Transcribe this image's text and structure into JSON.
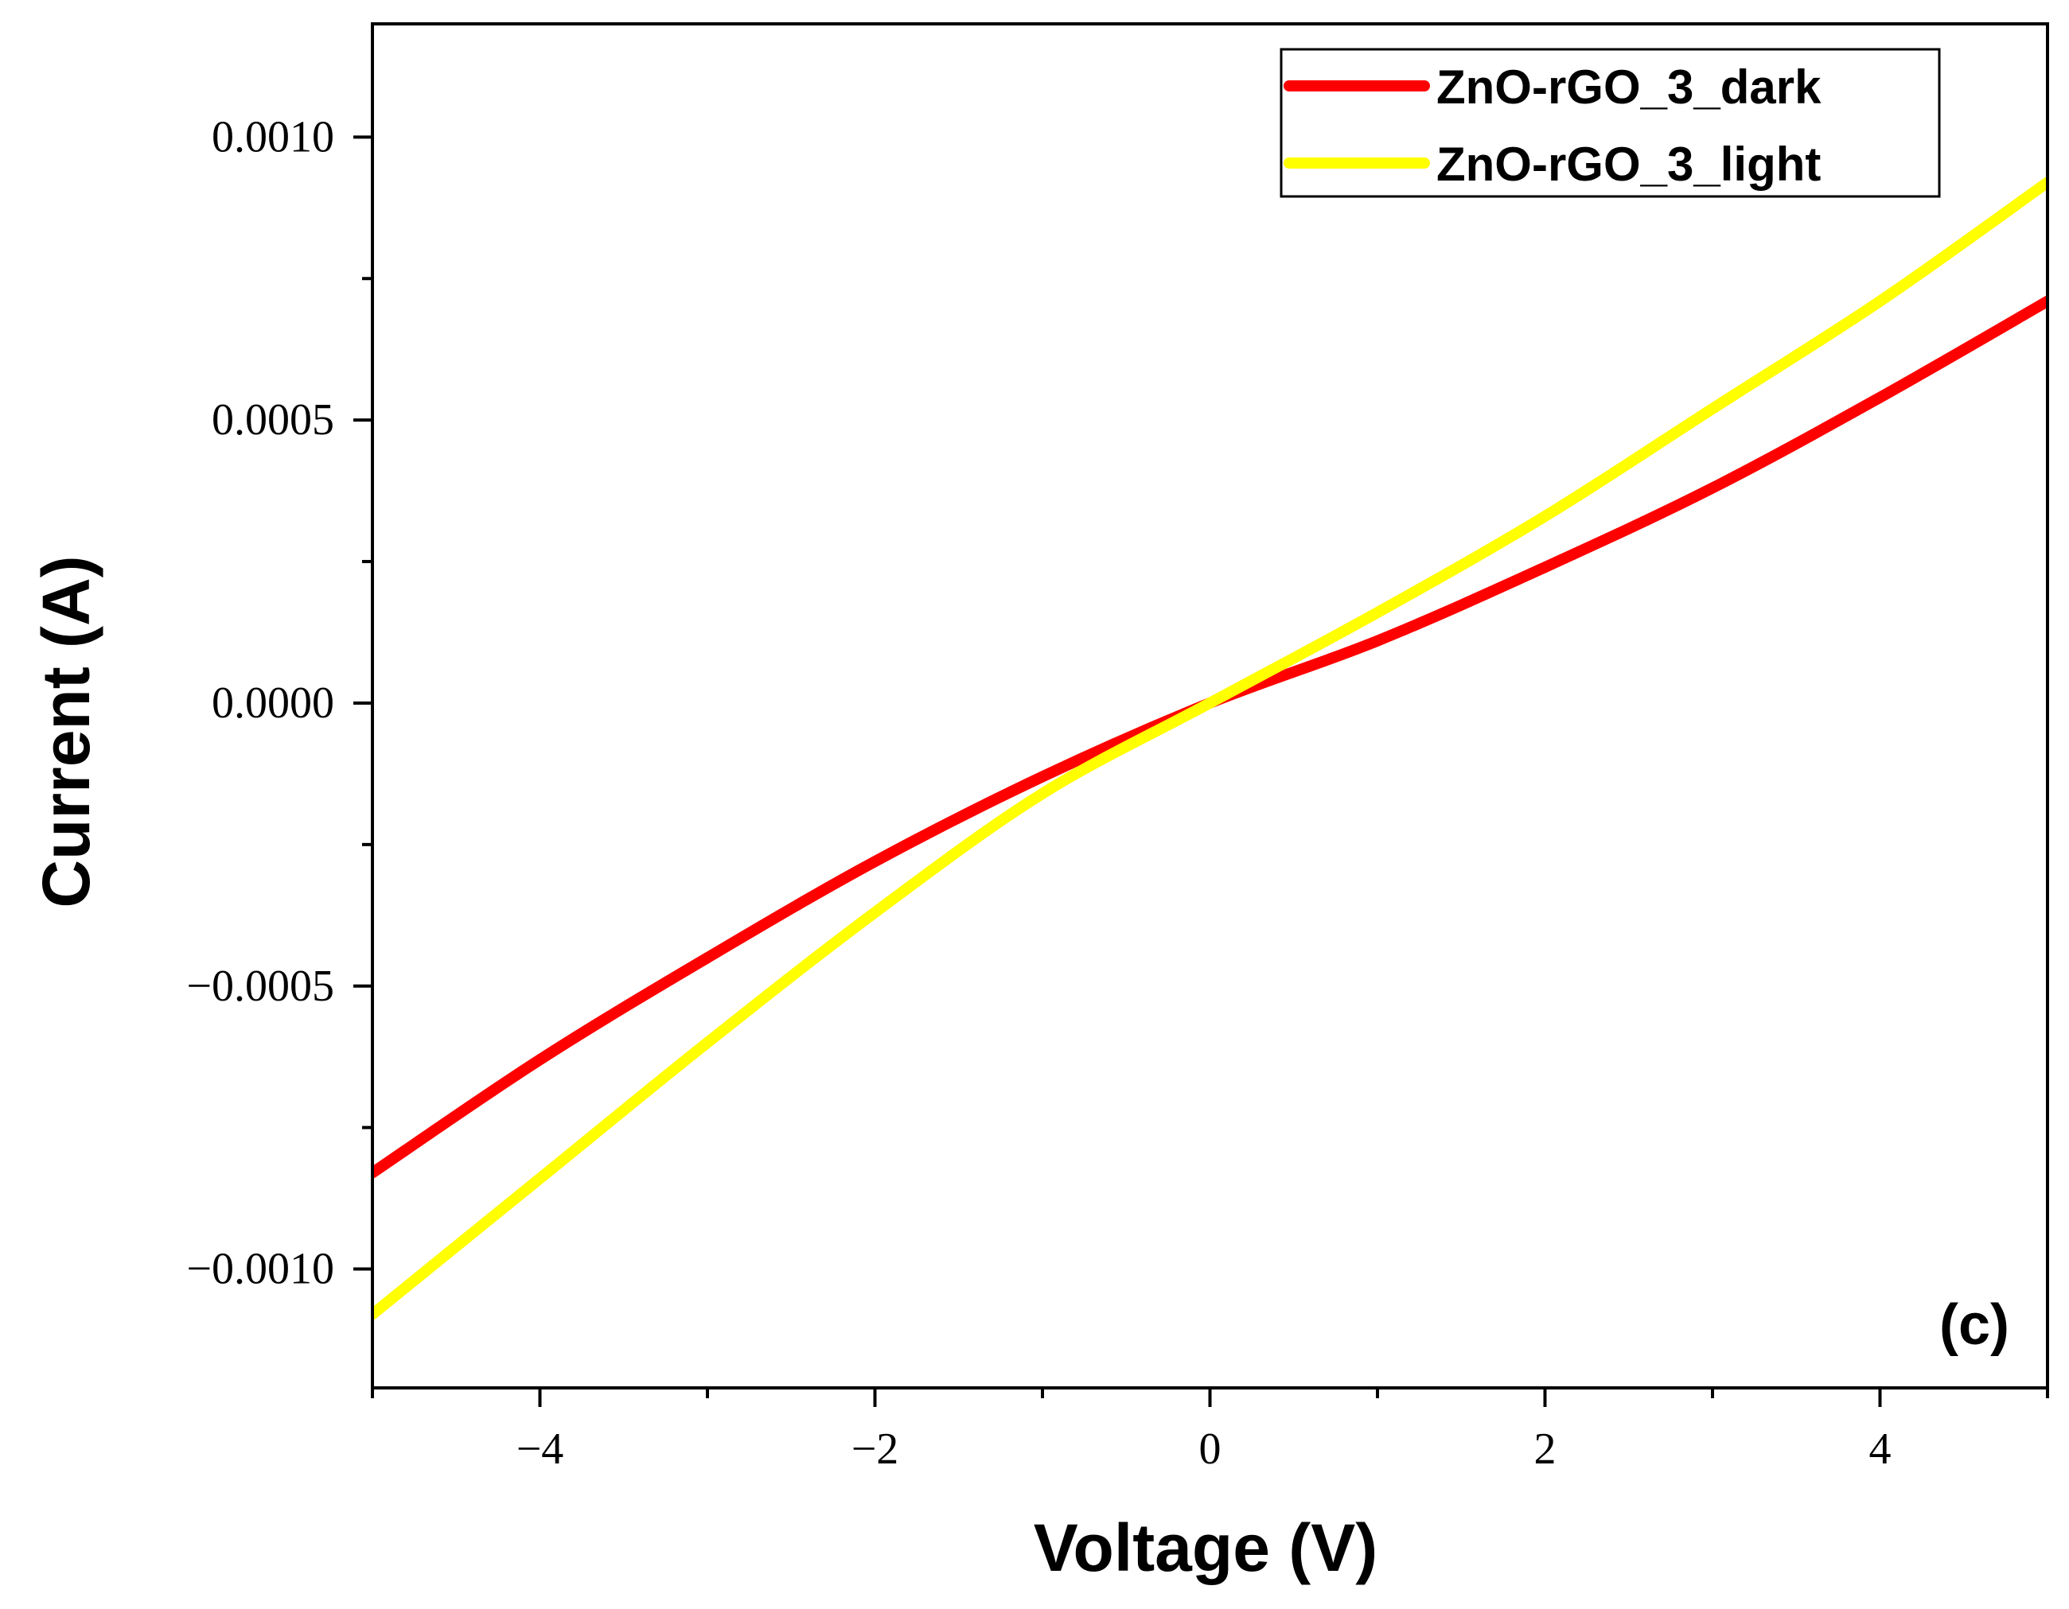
{
  "chart_data": {
    "type": "line",
    "title": "",
    "xlabel": "Voltage (V)",
    "ylabel": "Current (A)",
    "xlim": [
      -5,
      5
    ],
    "ylim": [
      -0.00121,
      0.0012
    ],
    "x_ticks": [
      {
        "value": -4,
        "label": "−4"
      },
      {
        "value": -2,
        "label": "−2"
      },
      {
        "value": 0,
        "label": "0"
      },
      {
        "value": 2,
        "label": "2"
      },
      {
        "value": 4,
        "label": "4"
      }
    ],
    "x_minor_ticks": [
      -5,
      -3,
      -1,
      1,
      3,
      5
    ],
    "y_ticks": [
      {
        "value": 0.001,
        "label": "0.0010"
      },
      {
        "value": 0.0005,
        "label": "0.0005"
      },
      {
        "value": 0,
        "label": "0.0000"
      },
      {
        "value": -0.0005,
        "label": "−0.0005"
      },
      {
        "value": -0.001,
        "label": "−0.0010"
      }
    ],
    "y_minor_ticks": [
      0.00075,
      0.00025,
      -0.00025,
      -0.00075
    ],
    "legend_position": "top-right",
    "annotation": "(c)",
    "grid": false,
    "series": [
      {
        "name": "ZnO-rGO_3_dark",
        "color": "#ff0000",
        "x": [
          -5,
          -4,
          -3,
          -2,
          -1,
          0,
          1,
          2,
          3,
          4,
          5
        ],
        "y": [
          -0.00083,
          -0.00063,
          -0.00045,
          -0.00028,
          -0.00013,
          0,
          0.00011,
          0.00024,
          0.00038,
          0.00054,
          0.00071
        ]
      },
      {
        "name": "ZnO-rGO_3_light",
        "color": "#ffff00",
        "x": [
          -5,
          -4,
          -3,
          -2,
          -1,
          0,
          1,
          2,
          3,
          4,
          5
        ],
        "y": [
          -0.00108,
          -0.00084,
          -0.0006,
          -0.00037,
          -0.00016,
          0,
          0.00016,
          0.00033,
          0.00052,
          0.00071,
          0.00092
        ]
      }
    ]
  }
}
